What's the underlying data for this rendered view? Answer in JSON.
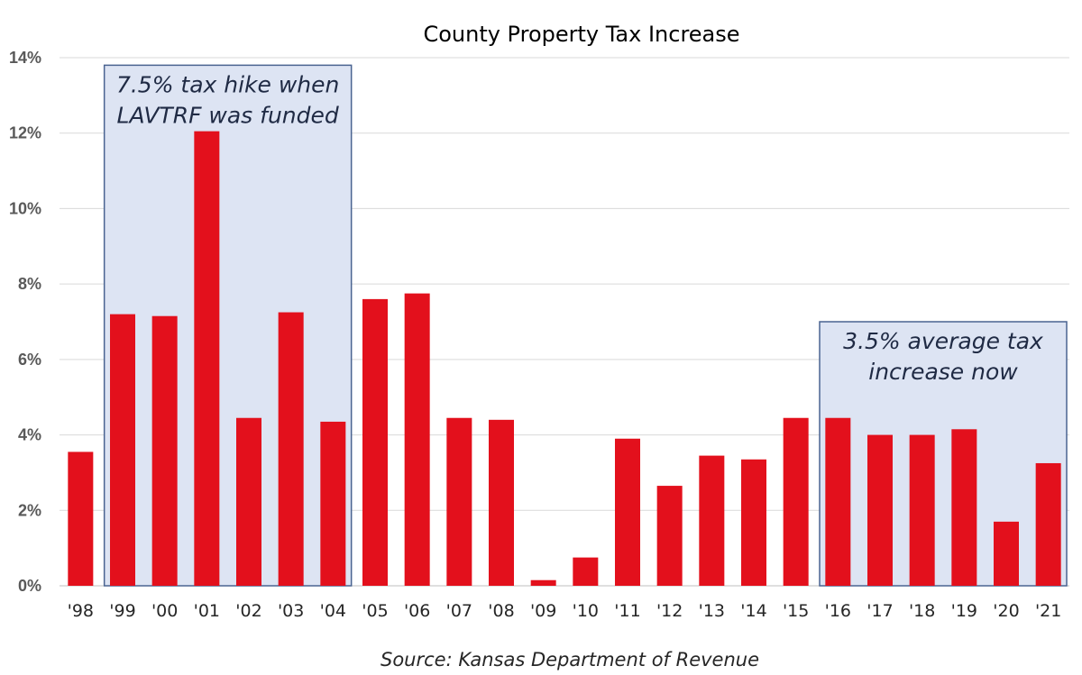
{
  "chart_data": {
    "type": "bar",
    "title": "County Property Tax Increase",
    "xlabel": "",
    "ylabel": "",
    "categories": [
      "'98",
      "'99",
      "'00",
      "'01",
      "'02",
      "'03",
      "'04",
      "'05",
      "'06",
      "'07",
      "'08",
      "'09",
      "'10",
      "'11",
      "'12",
      "'13",
      "'14",
      "'15",
      "'16",
      "'17",
      "'18",
      "'19",
      "'20",
      "'21"
    ],
    "values": [
      3.55,
      7.2,
      7.15,
      12.05,
      4.45,
      7.25,
      4.35,
      7.6,
      7.75,
      4.45,
      4.4,
      0.15,
      0.75,
      3.9,
      2.65,
      3.45,
      3.35,
      4.45,
      4.45,
      4.0,
      4.0,
      4.15,
      1.7,
      3.25
    ],
    "ylim": [
      0,
      14
    ],
    "yticks": [
      "0%",
      "2%",
      "4%",
      "6%",
      "8%",
      "10%",
      "12%",
      "14%"
    ],
    "grid": true,
    "bar_color": "#e3101c",
    "annotations": [
      {
        "lines": [
          "7.5% tax hike when",
          "LAVTRF was funded"
        ],
        "span": [
          "'99",
          "'04"
        ],
        "top_value": 13.8
      },
      {
        "lines": [
          "3.5% average tax",
          "increase now"
        ],
        "span": [
          "'16",
          "'21"
        ],
        "top_value": 7.0
      }
    ],
    "annotation_fill": "#dde4f3",
    "annotation_border": "#4a6491",
    "source": "Source: Kansas Department of Revenue"
  }
}
